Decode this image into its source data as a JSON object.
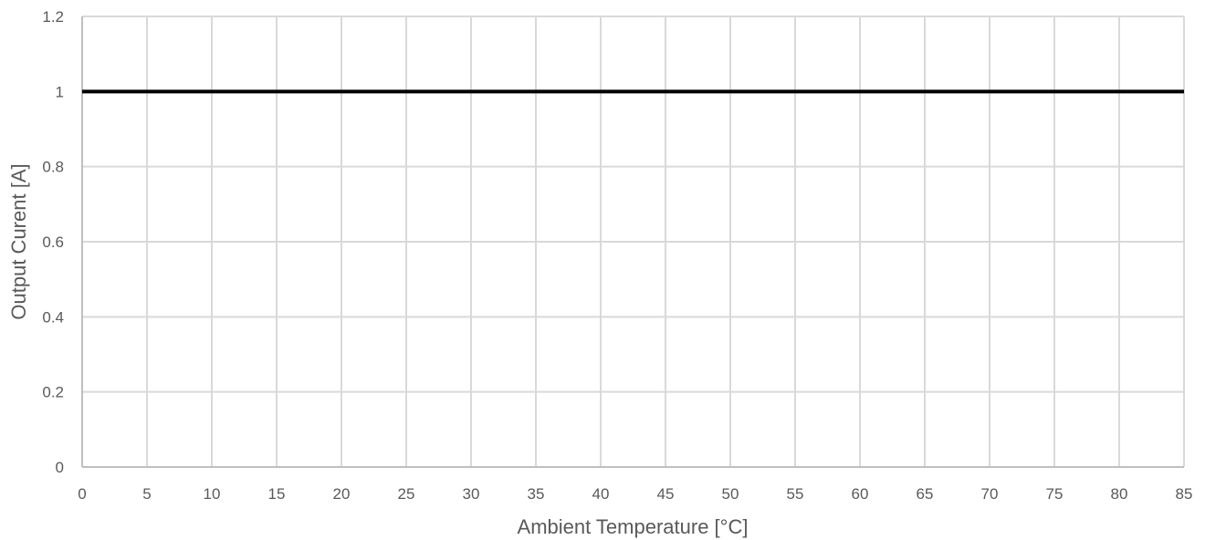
{
  "chart_data": {
    "type": "line",
    "title": "",
    "xlabel": "Ambient Temperature [°C]",
    "ylabel": "Output Curent [A]",
    "xlim": [
      0,
      85
    ],
    "ylim": [
      0,
      1.2
    ],
    "x_ticks": [
      0,
      5,
      10,
      15,
      20,
      25,
      30,
      35,
      40,
      45,
      50,
      55,
      60,
      65,
      70,
      75,
      80,
      85
    ],
    "y_ticks": [
      0,
      0.2,
      0.4,
      0.6,
      0.8,
      1,
      1.2
    ],
    "grid": true,
    "legend": "none",
    "series": [
      {
        "x": [
          0,
          85
        ],
        "y": [
          1,
          1
        ],
        "color": "#000000"
      }
    ],
    "colors": {
      "grid": "#d9d9d9",
      "axis": "#bfbfbf",
      "text": "#595959",
      "line": "#000000"
    }
  }
}
